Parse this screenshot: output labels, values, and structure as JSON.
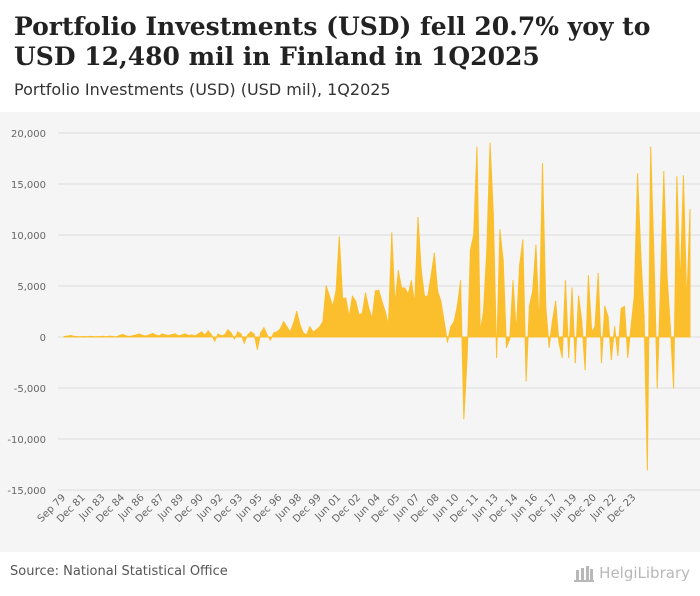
{
  "header": {
    "title": "Portfolio Investments (USD) fell 20.7% yoy to USD 12,480 mil in Finland in 1Q2025",
    "subtitle": "Portfolio Investments (USD) (USD mil), 1Q2025"
  },
  "footer": {
    "source": "Source: National Statistical Office",
    "brand_name": "HelgiLibrary"
  },
  "colors": {
    "area": "#fbbf2e",
    "grid": "#dddddd",
    "axis_text": "#666666",
    "plot_bg": "#f5f5f5"
  },
  "chart_data": {
    "type": "area",
    "title": "Portfolio Investments (USD) (USD mil), 1Q2025",
    "xlabel": "",
    "ylabel": "USD mil",
    "ylim": [
      -15000,
      20000
    ],
    "yticks": [
      -15000,
      -10000,
      -5000,
      0,
      5000,
      10000,
      15000,
      20000
    ],
    "ytick_labels": [
      "-15,000",
      "-10,000",
      "-5,000",
      "0",
      "5,000",
      "10,000",
      "15,000",
      "20,000"
    ],
    "grid": true,
    "x_start": "Sep 79",
    "x_end": "Mar 25",
    "frequency": "quarterly",
    "xtick_labels": [
      "Sep 79",
      "Dec 81",
      "Jun 83",
      "Dec 84",
      "Jun 86",
      "Dec 87",
      "Jun 89",
      "Dec 90",
      "Jun 92",
      "Dec 93",
      "Jun 95",
      "Dec 96",
      "Jun 98",
      "Dec 99",
      "Jun 01",
      "Dec 02",
      "Jun 04",
      "Dec 05",
      "Jun 07",
      "Dec 08",
      "Jun 10",
      "Dec 11",
      "Jun 13",
      "Dec 14",
      "Jun 16",
      "Dec 17",
      "Jun 19",
      "Dec 20",
      "Jun 22",
      "Dec 23"
    ],
    "series": [
      {
        "name": "Portfolio Investments (USD)",
        "values": [
          50,
          80,
          150,
          60,
          40,
          30,
          50,
          20,
          60,
          40,
          30,
          50,
          60,
          30,
          80,
          40,
          30,
          150,
          250,
          100,
          50,
          120,
          200,
          300,
          150,
          100,
          200,
          350,
          200,
          100,
          300,
          200,
          150,
          250,
          300,
          100,
          200,
          300,
          150,
          200,
          100,
          300,
          500,
          200,
          600,
          200,
          -400,
          300,
          100,
          200,
          700,
          400,
          -200,
          500,
          300,
          -600,
          200,
          500,
          300,
          -1200,
          400,
          900,
          200,
          -300,
          400,
          500,
          800,
          1500,
          1000,
          500,
          1300,
          2500,
          1200,
          400,
          200,
          1000,
          500,
          700,
          1000,
          1500,
          5000,
          4000,
          3000,
          4500,
          9800,
          3800,
          3800,
          2000,
          4000,
          3500,
          2200,
          2300,
          4300,
          2800,
          1800,
          4500,
          4600,
          3500,
          2500,
          1200,
          10200,
          3200,
          6500,
          4800,
          4800,
          4200,
          5500,
          3200,
          11700,
          6500,
          4000,
          4000,
          6000,
          8200,
          4500,
          3500,
          1500,
          -500,
          1000,
          1500,
          3000,
          5500,
          -8000,
          -2000,
          8500,
          10000,
          18600,
          500,
          2500,
          8500,
          19000,
          12000,
          -2000,
          10500,
          7500,
          -1000,
          -200,
          5500,
          500,
          7000,
          9500,
          -4300,
          3000,
          4500,
          9000,
          1000,
          17000,
          3000,
          -1000,
          1500,
          3500,
          -500,
          -2000,
          5500,
          -2000,
          4800,
          -2500,
          4000,
          1500,
          -3200,
          6000,
          500,
          1000,
          6200,
          -2500,
          3000,
          2000,
          -2200,
          1000,
          -1800,
          2800,
          3000,
          -2000,
          1000,
          4000,
          16000,
          8000,
          2000,
          -13000,
          18600,
          8000,
          -5000,
          5000,
          16200,
          6000,
          1000,
          -5000,
          15700,
          5000,
          15800,
          3200,
          12480
        ]
      }
    ]
  }
}
